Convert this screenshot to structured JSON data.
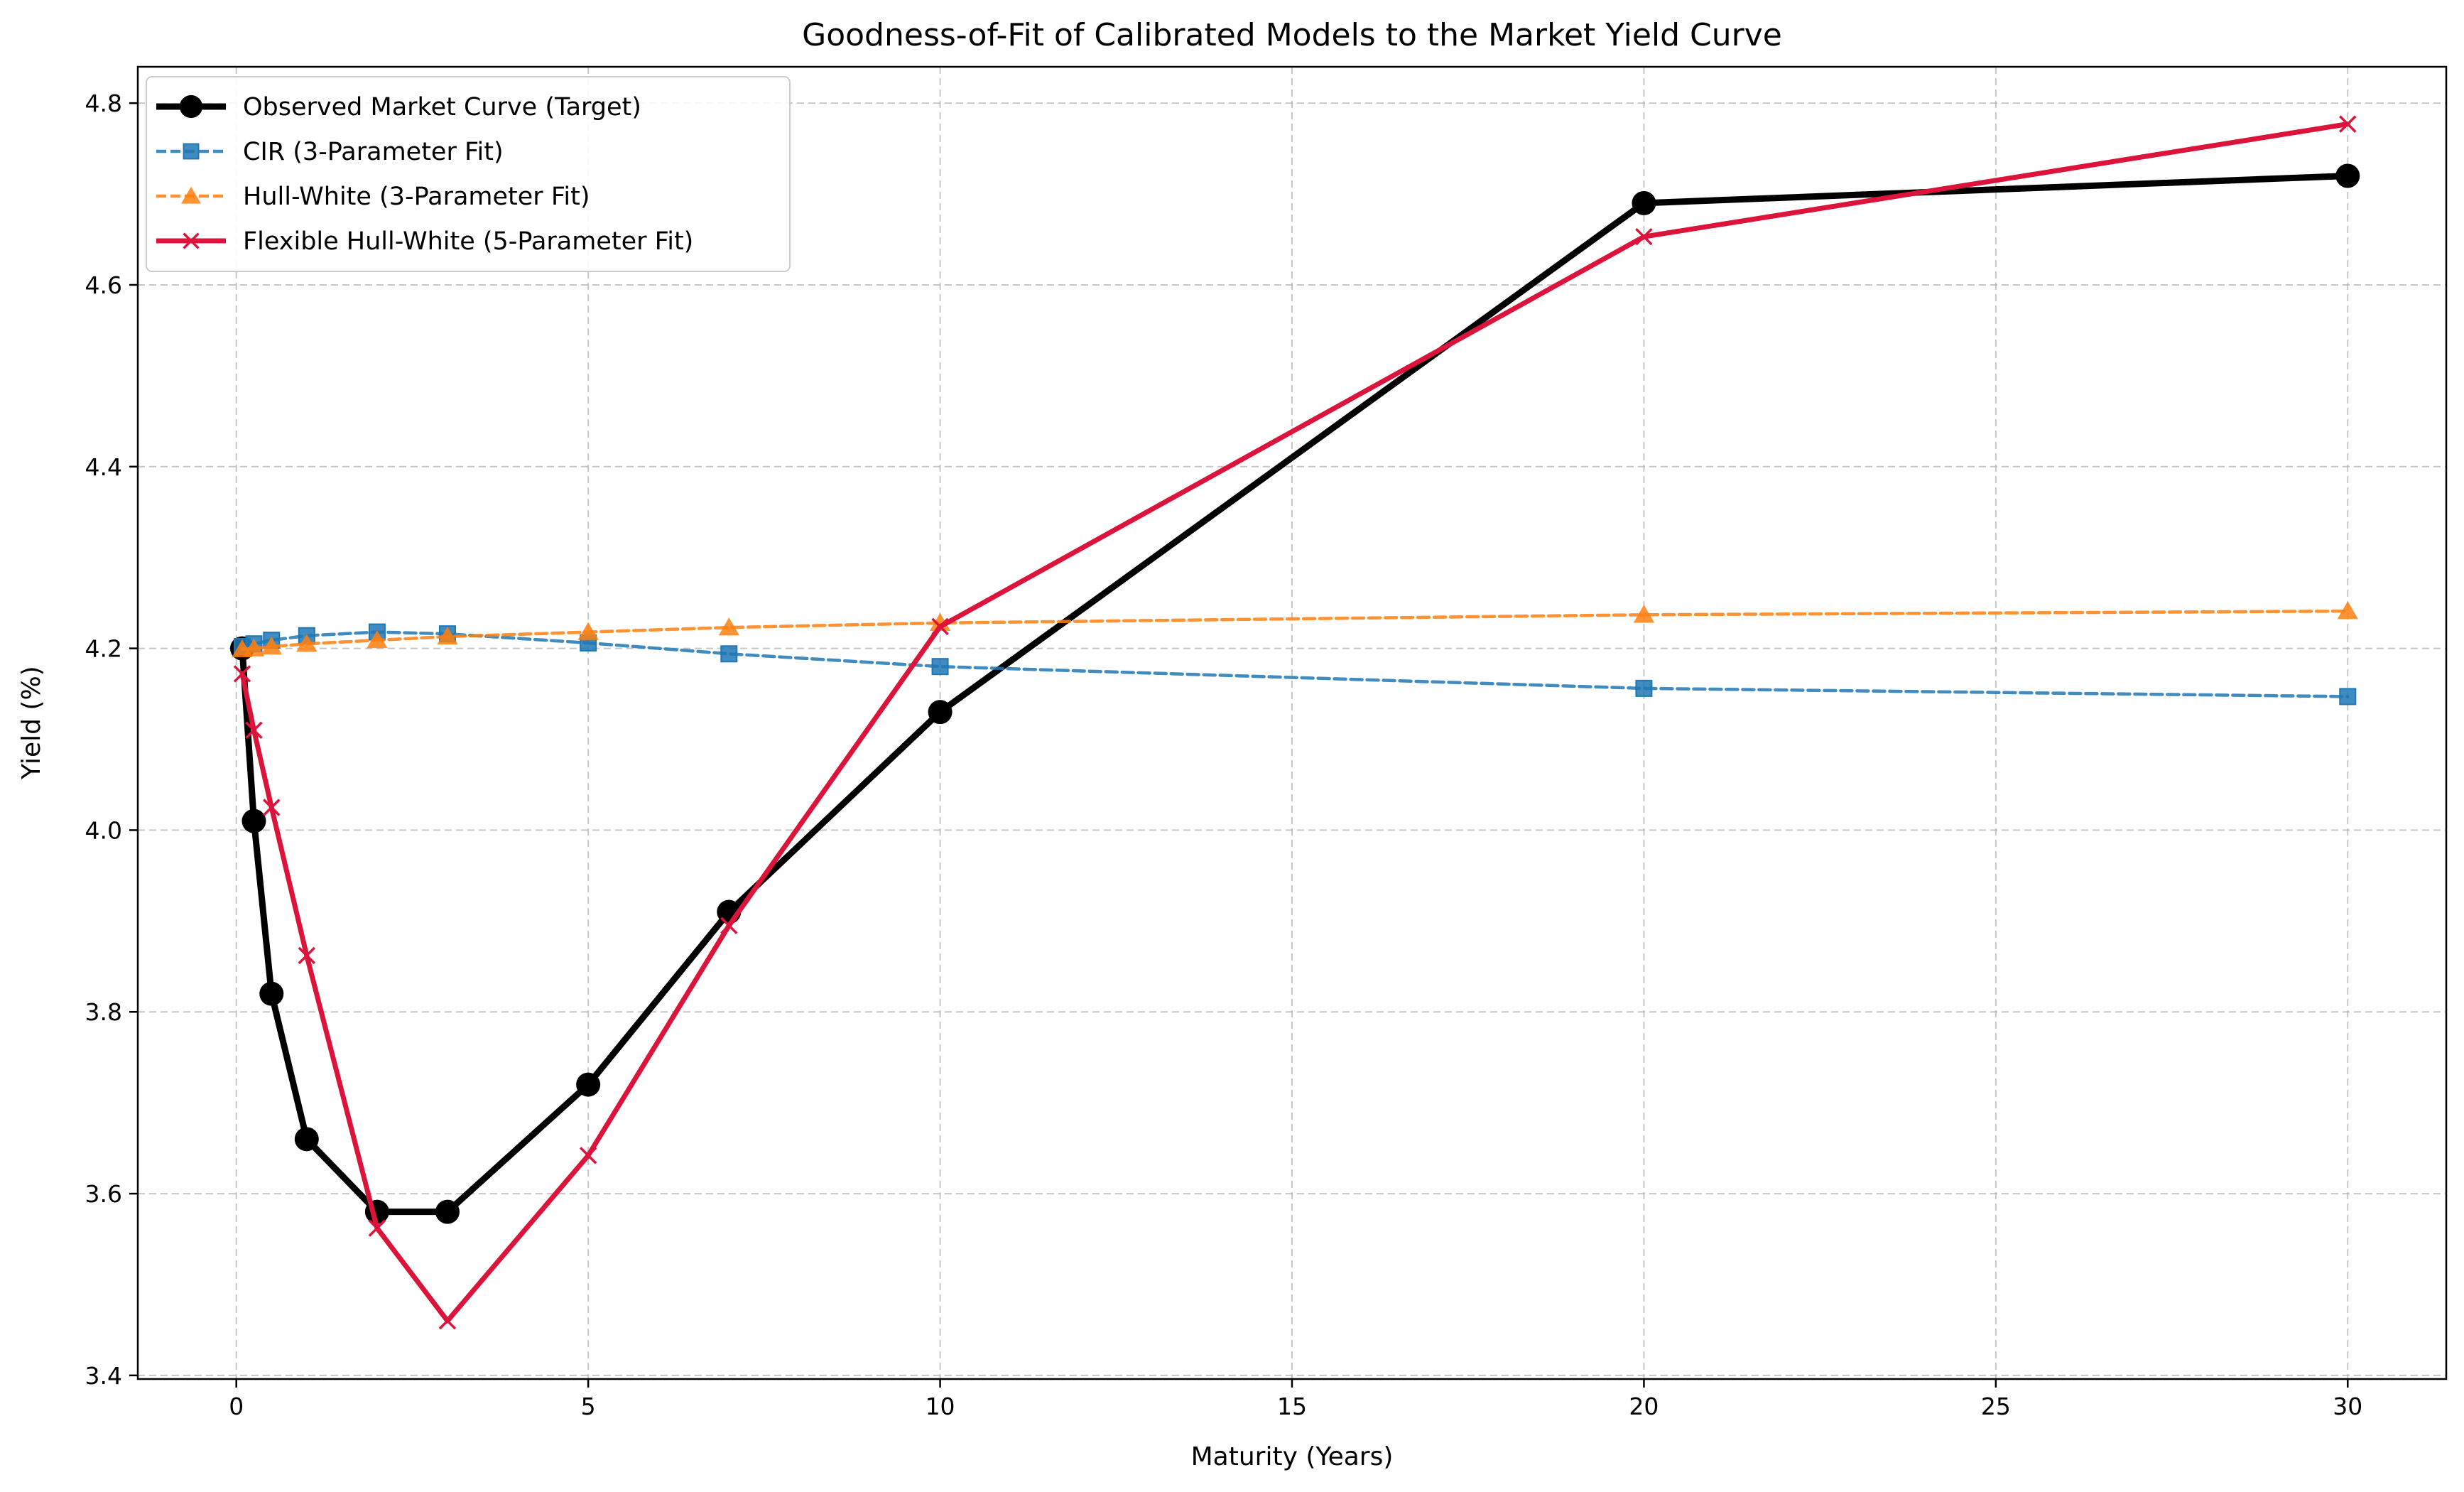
{
  "chart_data": {
    "type": "line",
    "title": "Goodness-of-Fit of Calibrated Models to the Market Yield Curve",
    "xlabel": "Maturity (Years)",
    "ylabel": "Yield (%)",
    "xlim": [
      -1.4,
      31.4
    ],
    "ylim": [
      3.396,
      4.84
    ],
    "xticks": [
      0,
      5,
      10,
      15,
      20,
      25,
      30
    ],
    "xtick_labels": [
      "0",
      "5",
      "10",
      "15",
      "20",
      "25",
      "30"
    ],
    "yticks": [
      3.4,
      3.6,
      3.8,
      4.0,
      4.2,
      4.4,
      4.6,
      4.8
    ],
    "ytick_labels": [
      "3.4",
      "3.6",
      "3.8",
      "4.0",
      "4.2",
      "4.4",
      "4.6",
      "4.8"
    ],
    "grid": true,
    "legend_position": "upper-left",
    "x": [
      0.0833,
      0.25,
      0.5,
      1,
      2,
      3,
      5,
      7,
      10,
      20,
      30
    ],
    "series": [
      {
        "name": "Observed Market Curve (Target)",
        "color": "#000000",
        "line_style": "solid",
        "marker": "circle",
        "values": [
          4.2,
          4.01,
          3.82,
          3.66,
          3.58,
          3.58,
          3.72,
          3.91,
          4.13,
          4.69,
          4.72
        ]
      },
      {
        "name": "CIR (3-Parameter Fit)",
        "color": "#1f77b4",
        "line_style": "dashed",
        "marker": "square",
        "values": [
          4.202,
          4.205,
          4.209,
          4.214,
          4.218,
          4.216,
          4.206,
          4.194,
          4.18,
          4.156,
          4.147
        ]
      },
      {
        "name": "Hull-White (3-Parameter Fit)",
        "color": "#ff7f0e",
        "line_style": "dashed",
        "marker": "triangle",
        "values": [
          4.199,
          4.2,
          4.202,
          4.205,
          4.209,
          4.213,
          4.218,
          4.223,
          4.228,
          4.237,
          4.241
        ]
      },
      {
        "name": "Flexible Hull-White (5-Parameter Fit)",
        "color": "#dc143c",
        "line_style": "solid",
        "marker": "x",
        "values": [
          4.172,
          4.11,
          4.025,
          3.862,
          3.562,
          3.46,
          3.642,
          3.895,
          4.224,
          4.653,
          4.777
        ]
      }
    ]
  }
}
